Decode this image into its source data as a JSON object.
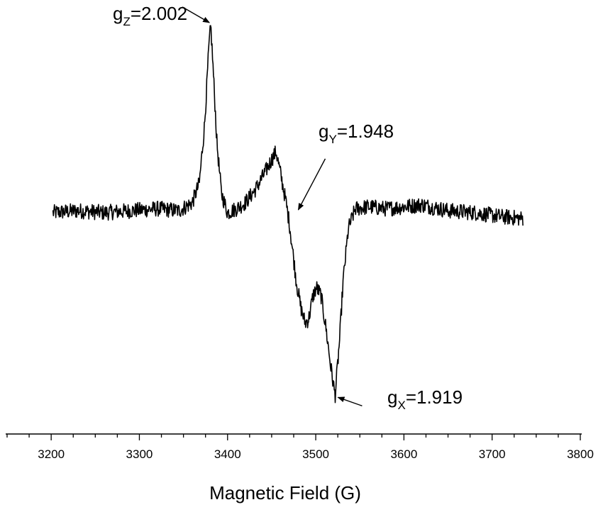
{
  "chart_data": {
    "type": "line",
    "title": "",
    "xlabel": "Magnetic Field (G)",
    "ylabel": "",
    "xlim": [
      3150,
      3800
    ],
    "ylim": [
      -1.08,
      1.0
    ],
    "x_ticks": [
      3200,
      3300,
      3400,
      3500,
      3600,
      3700,
      3800
    ],
    "x_tick_labels": [
      "3200",
      "3300",
      "3400",
      "3500",
      "3600",
      "3700",
      "3800"
    ],
    "y_axis_visible": false,
    "grid": false,
    "legend": "none",
    "line_color": "#000000",
    "series": [
      {
        "x_range": [
          3202,
          3735
        ],
        "approx_noise_amplitude": 0.04,
        "points": [
          [
            3202,
            0.0
          ],
          [
            3230,
            0.01
          ],
          [
            3260,
            0.0
          ],
          [
            3290,
            0.01
          ],
          [
            3320,
            0.02
          ],
          [
            3345,
            0.01
          ],
          [
            3360,
            0.05
          ],
          [
            3368,
            0.15
          ],
          [
            3374,
            0.45
          ],
          [
            3379,
            0.85
          ],
          [
            3381,
            0.95
          ],
          [
            3384,
            0.7
          ],
          [
            3388,
            0.35
          ],
          [
            3393,
            0.1
          ],
          [
            3400,
            0.0
          ],
          [
            3410,
            0.02
          ],
          [
            3420,
            0.05
          ],
          [
            3432,
            0.12
          ],
          [
            3442,
            0.2
          ],
          [
            3450,
            0.27
          ],
          [
            3455,
            0.31
          ],
          [
            3460,
            0.2
          ],
          [
            3466,
            0.06
          ],
          [
            3470,
            -0.05
          ],
          [
            3474,
            -0.2
          ],
          [
            3478,
            -0.35
          ],
          [
            3483,
            -0.48
          ],
          [
            3488,
            -0.56
          ],
          [
            3492,
            -0.54
          ],
          [
            3497,
            -0.42
          ],
          [
            3501,
            -0.38
          ],
          [
            3506,
            -0.42
          ],
          [
            3512,
            -0.6
          ],
          [
            3517,
            -0.78
          ],
          [
            3522,
            -0.93
          ],
          [
            3527,
            -0.65
          ],
          [
            3531,
            -0.35
          ],
          [
            3537,
            -0.08
          ],
          [
            3545,
            0.02
          ],
          [
            3560,
            0.03
          ],
          [
            3580,
            0.02
          ],
          [
            3600,
            0.03
          ],
          [
            3620,
            0.04
          ],
          [
            3650,
            0.01
          ],
          [
            3680,
            0.0
          ],
          [
            3710,
            -0.02
          ],
          [
            3735,
            -0.03
          ]
        ]
      }
    ],
    "annotations": [
      {
        "label_main": "g",
        "label_sub": "Z",
        "label_value": "=2.002",
        "x": 3381,
        "y": 0.95
      },
      {
        "label_main": "g",
        "label_sub": "Y",
        "label_value": "=1.948",
        "x": 3477,
        "y": 0.0
      },
      {
        "label_main": "g",
        "label_sub": "X",
        "label_value": "=1.919",
        "x": 3522,
        "y": -0.93
      }
    ]
  }
}
